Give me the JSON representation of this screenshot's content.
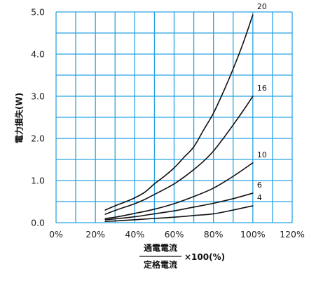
{
  "chart_data": {
    "type": "line",
    "title": "",
    "ylabel": "電力損失(W)",
    "xlabel": {
      "numerator": "通電電流",
      "denominator": "定格電流",
      "suffix": "×100(%)"
    },
    "xlim": [
      0,
      120
    ],
    "ylim": [
      0,
      5
    ],
    "x_major_ticks": [
      0,
      20,
      40,
      60,
      80,
      100,
      120
    ],
    "x_tick_labels": [
      "0%",
      "20%",
      "40%",
      "60%",
      "80%",
      "100%",
      "120%"
    ],
    "y_major_ticks": [
      0,
      1,
      2,
      3,
      4,
      5
    ],
    "y_tick_labels": [
      "0.0",
      "1.0",
      "2.0",
      "3.0",
      "4.0",
      "5.0"
    ],
    "x_grid_step": 10,
    "y_grid_step": 0.5,
    "grid": true,
    "grid_color": "#29a3e3",
    "line_color": "#111111",
    "series": [
      {
        "name": "20",
        "x": [
          25,
          30,
          35,
          40,
          45,
          50,
          55,
          60,
          65,
          70,
          75,
          80,
          85,
          90,
          95,
          100
        ],
        "y": [
          0.3,
          0.4,
          0.49,
          0.59,
          0.72,
          0.92,
          1.1,
          1.3,
          1.55,
          1.8,
          2.2,
          2.6,
          3.1,
          3.65,
          4.25,
          4.93
        ]
      },
      {
        "name": "16",
        "x": [
          25,
          30,
          35,
          40,
          45,
          50,
          55,
          60,
          65,
          70,
          75,
          80,
          85,
          90,
          95,
          100
        ],
        "y": [
          0.2,
          0.29,
          0.37,
          0.45,
          0.55,
          0.67,
          0.79,
          0.92,
          1.08,
          1.26,
          1.46,
          1.7,
          2.0,
          2.32,
          2.65,
          3.0
        ]
      },
      {
        "name": "10",
        "x": [
          25,
          30,
          40,
          50,
          60,
          70,
          80,
          90,
          100
        ],
        "y": [
          0.1,
          0.13,
          0.22,
          0.32,
          0.45,
          0.62,
          0.82,
          1.1,
          1.42
        ]
      },
      {
        "name": "6",
        "x": [
          25,
          30,
          40,
          50,
          60,
          70,
          80,
          90,
          100
        ],
        "y": [
          0.07,
          0.09,
          0.14,
          0.21,
          0.28,
          0.37,
          0.46,
          0.57,
          0.7
        ]
      },
      {
        "name": "4",
        "x": [
          25,
          30,
          40,
          50,
          60,
          70,
          80,
          90,
          100
        ],
        "y": [
          0.03,
          0.04,
          0.07,
          0.1,
          0.13,
          0.17,
          0.21,
          0.3,
          0.4
        ]
      }
    ]
  }
}
